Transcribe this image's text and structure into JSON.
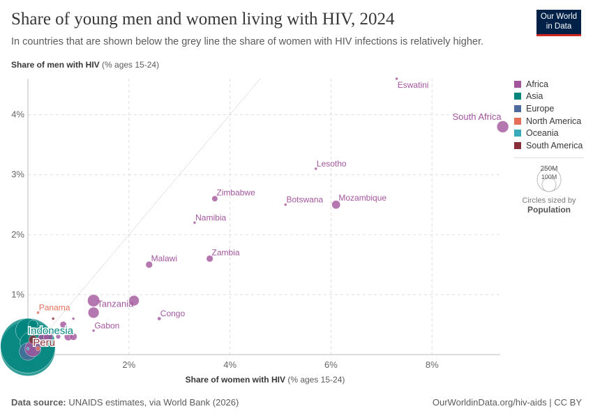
{
  "header": {
    "title": "Share of young men and women living with HIV, 2024",
    "subtitle": "In countries that are shown below the grey line the share of women with HIV infections is relatively higher.",
    "logo": "Our World in Data"
  },
  "footer": {
    "source_label": "Data source:",
    "source": "UNAIDS estimates, via World Bank (2026)",
    "url": "OurWorldinData.org/hiv-aids | CC BY"
  },
  "size_legend": {
    "big": "250M",
    "small": "100M",
    "caption": "Circles sized by",
    "variable": "Population"
  },
  "colors": {
    "Africa": "#a2559c",
    "Asia": "#00847e",
    "Europe": "#4c6a9c",
    "North America": "#e56e5a",
    "Oceania": "#38aaba",
    "South America": "#883039"
  },
  "chart_data": {
    "type": "scatter",
    "title": "Share of young men and women living with HIV, 2024",
    "xlabel_bold": "Share of women with HIV",
    "xlabel_unit": "(% ages 15-24)",
    "ylabel_bold": "Share of men with HIV",
    "ylabel_unit": "(% ages 15-24)",
    "xlim": [
      0,
      9.35
    ],
    "ylim": [
      0,
      4.6
    ],
    "xticks": [
      "0%",
      "2%",
      "4%",
      "6%",
      "8%"
    ],
    "yticks": [
      "0%",
      "1%",
      "2%",
      "3%",
      "4%"
    ],
    "grid": true,
    "legend_position": "right",
    "reference_line": "y = x",
    "legend": [
      "Africa",
      "Asia",
      "Europe",
      "North America",
      "Oceania",
      "South America"
    ],
    "points": [
      {
        "label": "Eswatini",
        "x": 7.3,
        "y": 4.6,
        "region": "Africa",
        "size": 1
      },
      {
        "label": "South Africa",
        "x": 9.4,
        "y": 3.8,
        "region": "Africa",
        "size": 64
      },
      {
        "label": "Lesotho",
        "x": 5.7,
        "y": 3.1,
        "region": "Africa",
        "size": 2
      },
      {
        "label": "Mozambique",
        "x": 6.1,
        "y": 2.5,
        "region": "Africa",
        "size": 34
      },
      {
        "label": "Botswana",
        "x": 5.1,
        "y": 2.5,
        "region": "Africa",
        "size": 2
      },
      {
        "label": "Zimbabwe",
        "x": 3.7,
        "y": 2.6,
        "region": "Africa",
        "size": 16
      },
      {
        "label": "Namibia",
        "x": 3.3,
        "y": 2.2,
        "region": "Africa",
        "size": 3
      },
      {
        "label": "Zambia",
        "x": 3.6,
        "y": 1.6,
        "region": "Africa",
        "size": 21
      },
      {
        "label": "Malawi",
        "x": 2.4,
        "y": 1.5,
        "region": "Africa",
        "size": 21
      },
      {
        "label": "Tanzania",
        "x": 1.3,
        "y": 0.9,
        "region": "Africa",
        "size": 68
      },
      {
        "label": "",
        "x": 2.1,
        "y": 0.9,
        "region": "Africa",
        "size": 50
      },
      {
        "label": "",
        "x": 1.3,
        "y": 0.7,
        "region": "Africa",
        "size": 56
      },
      {
        "label": "Congo",
        "x": 2.6,
        "y": 0.6,
        "region": "Africa",
        "size": 6
      },
      {
        "label": "Gabon",
        "x": 1.3,
        "y": 0.4,
        "region": "Africa",
        "size": 2
      },
      {
        "label": "Panama",
        "x": 0.2,
        "y": 0.7,
        "region": "North America",
        "size": 4
      },
      {
        "label": "",
        "x": 0.5,
        "y": 0.6,
        "region": "South America",
        "size": 2
      },
      {
        "label": "",
        "x": 0.9,
        "y": 0.6,
        "region": "Africa",
        "size": 3
      },
      {
        "label": "",
        "x": 0.7,
        "y": 0.5,
        "region": "Africa",
        "size": 20
      },
      {
        "label": "",
        "x": 0.8,
        "y": 0.3,
        "region": "Africa",
        "size": 30
      },
      {
        "label": "",
        "x": 0.9,
        "y": 0.3,
        "region": "Africa",
        "size": 25
      },
      {
        "label": "",
        "x": 0.6,
        "y": 0.3,
        "region": "Africa",
        "size": 10
      },
      {
        "label": "",
        "x": 0.4,
        "y": 0.3,
        "region": "Africa",
        "size": 40
      },
      {
        "label": "",
        "x": 0.3,
        "y": 0.25,
        "region": "Africa",
        "size": 60
      },
      {
        "label": "",
        "x": 0.1,
        "y": 0.5,
        "region": "Asia",
        "size": 40
      },
      {
        "label": "Indonesia",
        "x": 0.0,
        "y": 0.4,
        "region": "Asia",
        "size": 280
      },
      {
        "label": "Peru",
        "x": 0.1,
        "y": 0.25,
        "region": "South America",
        "size": 35
      },
      {
        "label": "",
        "x": 0.05,
        "y": 0.2,
        "region": "Asia",
        "size": 200
      },
      {
        "label": "",
        "x": 0.0,
        "y": 0.1,
        "region": "Asia",
        "size": 1400
      },
      {
        "label": "",
        "x": 0.0,
        "y": 0.15,
        "region": "Asia",
        "size": 1400
      },
      {
        "label": "",
        "x": 0.1,
        "y": 0.1,
        "region": "Africa",
        "size": 120
      },
      {
        "label": "",
        "x": 0.0,
        "y": 0.05,
        "region": "Europe",
        "size": 140
      },
      {
        "label": "",
        "x": 0.2,
        "y": 0.1,
        "region": "North America",
        "size": 8
      },
      {
        "label": "",
        "x": 0.0,
        "y": 0.1,
        "region": "Oceania",
        "size": 3
      }
    ]
  }
}
